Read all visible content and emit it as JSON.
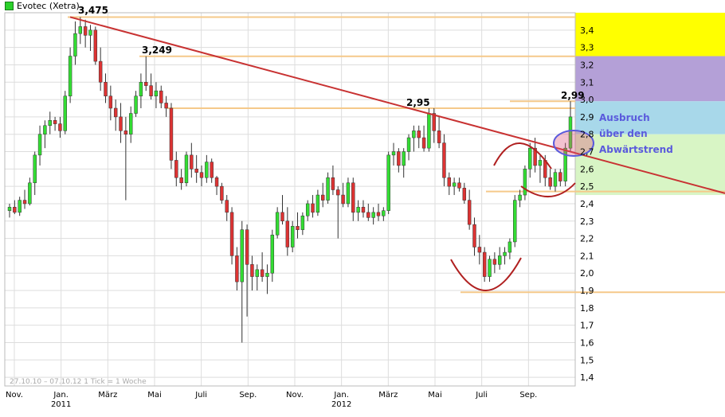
{
  "chart_data": {
    "type": "candlestick",
    "title": "Evotec (Xetra)",
    "date_range": "27.10.10 – 07.10.12",
    "tick_info": "1 Tick = 1 Woche",
    "y_ticks": [
      "1,4",
      "1,5",
      "1,6",
      "1,7",
      "1,8",
      "1,9",
      "2,0",
      "2,1",
      "2,2",
      "2,3",
      "2,4",
      "2,5",
      "2,6",
      "2,7",
      "2,8",
      "2,9",
      "3,0",
      "3,1",
      "3,2",
      "3,3",
      "3,4"
    ],
    "ylim": [
      1.35,
      3.5
    ],
    "x_months": [
      {
        "label": "Nov.",
        "year": ""
      },
      {
        "label": "Jan.",
        "year": "2011"
      },
      {
        "label": "März",
        "year": ""
      },
      {
        "label": "Mai",
        "year": ""
      },
      {
        "label": "Juli",
        "year": ""
      },
      {
        "label": "Sep.",
        "year": ""
      },
      {
        "label": "Nov.",
        "year": ""
      },
      {
        "label": "Jan.",
        "year": "2012"
      },
      {
        "label": "März",
        "year": ""
      },
      {
        "label": "Mai",
        "year": ""
      },
      {
        "label": "Juli",
        "year": ""
      },
      {
        "label": "Sep.",
        "year": ""
      }
    ],
    "candles": [
      [
        2.36,
        2.4,
        2.32,
        2.38
      ],
      [
        2.38,
        2.42,
        2.34,
        2.35
      ],
      [
        2.35,
        2.44,
        2.33,
        2.42
      ],
      [
        2.42,
        2.48,
        2.37,
        2.4
      ],
      [
        2.4,
        2.55,
        2.39,
        2.52
      ],
      [
        2.52,
        2.7,
        2.45,
        2.68
      ],
      [
        2.68,
        2.85,
        2.62,
        2.8
      ],
      [
        2.8,
        2.88,
        2.72,
        2.85
      ],
      [
        2.85,
        2.93,
        2.8,
        2.88
      ],
      [
        2.88,
        2.9,
        2.82,
        2.86
      ],
      [
        2.86,
        2.9,
        2.78,
        2.82
      ],
      [
        2.82,
        3.05,
        2.8,
        3.02
      ],
      [
        3.02,
        3.3,
        2.98,
        3.25
      ],
      [
        3.25,
        3.45,
        3.2,
        3.38
      ],
      [
        3.38,
        3.475,
        3.32,
        3.42
      ],
      [
        3.42,
        3.46,
        3.3,
        3.37
      ],
      [
        3.37,
        3.43,
        3.28,
        3.4
      ],
      [
        3.4,
        3.42,
        3.2,
        3.22
      ],
      [
        3.22,
        3.3,
        3.05,
        3.1
      ],
      [
        3.1,
        3.15,
        2.98,
        3.02
      ],
      [
        3.02,
        3.08,
        2.88,
        2.95
      ],
      [
        2.95,
        3.0,
        2.82,
        2.9
      ],
      [
        2.9,
        2.98,
        2.75,
        2.82
      ],
      [
        2.82,
        2.9,
        2.42,
        2.8
      ],
      [
        2.8,
        2.96,
        2.75,
        2.92
      ],
      [
        2.92,
        3.05,
        2.9,
        3.02
      ],
      [
        3.02,
        3.15,
        2.95,
        3.1
      ],
      [
        3.1,
        3.249,
        3.05,
        3.08
      ],
      [
        3.08,
        3.15,
        3.0,
        3.02
      ],
      [
        3.02,
        3.1,
        2.95,
        3.05
      ],
      [
        3.05,
        3.08,
        2.95,
        2.98
      ],
      [
        2.98,
        3.02,
        2.9,
        2.95
      ],
      [
        2.95,
        2.98,
        2.6,
        2.65
      ],
      [
        2.65,
        2.7,
        2.5,
        2.55
      ],
      [
        2.55,
        2.6,
        2.48,
        2.52
      ],
      [
        2.52,
        2.7,
        2.5,
        2.68
      ],
      [
        2.68,
        2.75,
        2.55,
        2.6
      ],
      [
        2.6,
        2.68,
        2.52,
        2.58
      ],
      [
        2.58,
        2.62,
        2.5,
        2.55
      ],
      [
        2.55,
        2.68,
        2.52,
        2.64
      ],
      [
        2.64,
        2.66,
        2.52,
        2.55
      ],
      [
        2.55,
        2.56,
        2.45,
        2.5
      ],
      [
        2.5,
        2.52,
        2.4,
        2.42
      ],
      [
        2.42,
        2.45,
        2.3,
        2.35
      ],
      [
        2.35,
        2.38,
        2.05,
        2.1
      ],
      [
        2.1,
        2.15,
        1.9,
        1.95
      ],
      [
        1.95,
        2.3,
        1.6,
        2.25
      ],
      [
        2.25,
        2.28,
        1.75,
        2.05
      ],
      [
        2.05,
        2.1,
        1.9,
        1.98
      ],
      [
        1.98,
        2.05,
        1.9,
        2.02
      ],
      [
        2.02,
        2.12,
        1.95,
        1.98
      ],
      [
        1.98,
        2.05,
        1.88,
        2.0
      ],
      [
        2.0,
        2.25,
        1.95,
        2.22
      ],
      [
        2.22,
        2.38,
        2.2,
        2.35
      ],
      [
        2.35,
        2.45,
        2.28,
        2.3
      ],
      [
        2.3,
        2.38,
        2.1,
        2.15
      ],
      [
        2.15,
        2.3,
        2.12,
        2.27
      ],
      [
        2.27,
        2.35,
        2.2,
        2.25
      ],
      [
        2.25,
        2.35,
        2.22,
        2.33
      ],
      [
        2.33,
        2.42,
        2.3,
        2.4
      ],
      [
        2.4,
        2.45,
        2.32,
        2.35
      ],
      [
        2.35,
        2.48,
        2.33,
        2.45
      ],
      [
        2.45,
        2.52,
        2.38,
        2.42
      ],
      [
        2.42,
        2.58,
        2.4,
        2.55
      ],
      [
        2.55,
        2.62,
        2.45,
        2.48
      ],
      [
        2.48,
        2.5,
        2.2,
        2.45
      ],
      [
        2.45,
        2.52,
        2.38,
        2.4
      ],
      [
        2.4,
        2.55,
        2.38,
        2.52
      ],
      [
        2.52,
        2.55,
        2.3,
        2.35
      ],
      [
        2.35,
        2.42,
        2.3,
        2.38
      ],
      [
        2.38,
        2.42,
        2.32,
        2.35
      ],
      [
        2.35,
        2.4,
        2.3,
        2.32
      ],
      [
        2.32,
        2.38,
        2.28,
        2.35
      ],
      [
        2.35,
        2.4,
        2.3,
        2.33
      ],
      [
        2.33,
        2.38,
        2.3,
        2.36
      ],
      [
        2.36,
        2.7,
        2.34,
        2.68
      ],
      [
        2.68,
        2.75,
        2.62,
        2.7
      ],
      [
        2.7,
        2.72,
        2.58,
        2.62
      ],
      [
        2.62,
        2.72,
        2.55,
        2.7
      ],
      [
        2.7,
        2.8,
        2.65,
        2.78
      ],
      [
        2.78,
        2.85,
        2.7,
        2.82
      ],
      [
        2.82,
        2.85,
        2.72,
        2.78
      ],
      [
        2.78,
        2.85,
        2.7,
        2.72
      ],
      [
        2.72,
        2.95,
        2.7,
        2.92
      ],
      [
        2.92,
        2.95,
        2.75,
        2.82
      ],
      [
        2.82,
        2.9,
        2.72,
        2.75
      ],
      [
        2.75,
        2.8,
        2.5,
        2.55
      ],
      [
        2.55,
        2.58,
        2.45,
        2.5
      ],
      [
        2.5,
        2.55,
        2.45,
        2.52
      ],
      [
        2.52,
        2.55,
        2.47,
        2.49
      ],
      [
        2.49,
        2.52,
        2.4,
        2.42
      ],
      [
        2.42,
        2.48,
        2.25,
        2.28
      ],
      [
        2.28,
        2.32,
        2.1,
        2.15
      ],
      [
        2.15,
        2.22,
        2.05,
        2.12
      ],
      [
        2.12,
        2.15,
        1.95,
        1.98
      ],
      [
        1.98,
        2.1,
        1.95,
        2.08
      ],
      [
        2.08,
        2.12,
        2.0,
        2.05
      ],
      [
        2.05,
        2.15,
        2.02,
        2.1
      ],
      [
        2.1,
        2.15,
        2.05,
        2.12
      ],
      [
        2.12,
        2.2,
        2.08,
        2.18
      ],
      [
        2.18,
        2.45,
        2.15,
        2.42
      ],
      [
        2.42,
        2.48,
        2.38,
        2.45
      ],
      [
        2.45,
        2.62,
        2.42,
        2.6
      ],
      [
        2.6,
        2.75,
        2.55,
        2.72
      ],
      [
        2.72,
        2.78,
        2.58,
        2.62
      ],
      [
        2.62,
        2.68,
        2.52,
        2.65
      ],
      [
        2.65,
        2.68,
        2.5,
        2.55
      ],
      [
        2.55,
        2.6,
        2.48,
        2.5
      ],
      [
        2.5,
        2.6,
        2.47,
        2.58
      ],
      [
        2.58,
        2.6,
        2.5,
        2.53
      ],
      [
        2.53,
        2.75,
        2.5,
        2.72
      ],
      [
        2.72,
        2.99,
        2.7,
        2.9
      ]
    ],
    "annotations": {
      "price_labels": [
        "3,475",
        "3,249",
        "2,95",
        "2,99"
      ],
      "text_lines": [
        "Ausbruch",
        "über den",
        "Abwärtstrend"
      ]
    },
    "zones": [
      {
        "from": 3.25,
        "to": 3.5,
        "color": "#ffff00"
      },
      {
        "from": 2.99,
        "to": 3.25,
        "color": "#b4a0d7"
      },
      {
        "from": 2.8,
        "to": 2.99,
        "color": "#a8d8ea"
      },
      {
        "from": 2.45,
        "to": 2.8,
        "color": "#d8f5c5"
      }
    ],
    "colors": {
      "up": "#33dd33",
      "down": "#dd3333",
      "trendline": "#c83232",
      "pattern": "#b02020",
      "support": "#f5c98a",
      "ellipse": "#5a5adc",
      "annotation_text": "#5a5adc"
    },
    "grid": true,
    "legend": "top-left"
  }
}
